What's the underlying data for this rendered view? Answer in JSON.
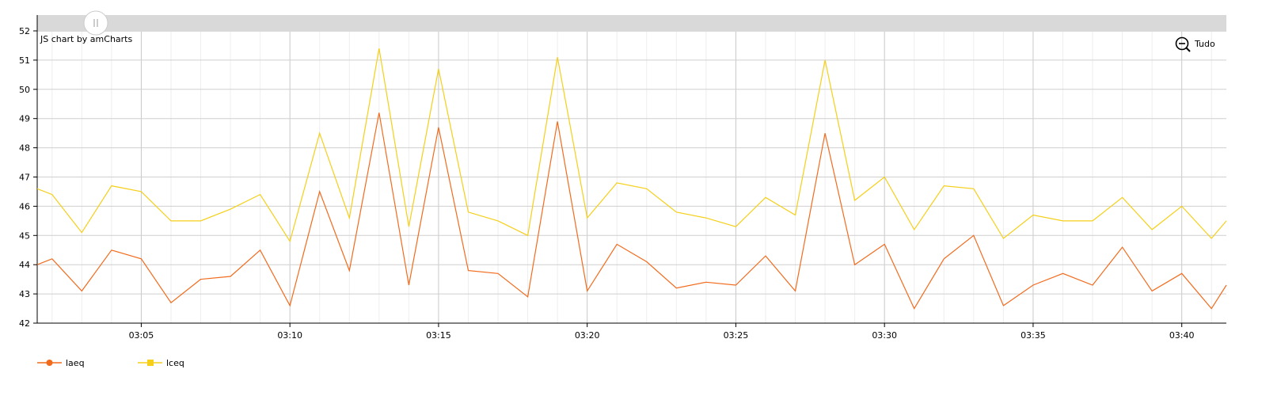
{
  "chart_data": {
    "type": "line",
    "credit": "JS chart by amCharts",
    "zoom_out_label": "Tudo",
    "y_ticks": [
      "42",
      "43",
      "44",
      "45",
      "46",
      "47",
      "48",
      "49",
      "50",
      "51",
      "52"
    ],
    "ylim": [
      42,
      52
    ],
    "x_tick_labels": [
      "03:05",
      "03:10",
      "03:15",
      "03:20",
      "03:25",
      "03:30",
      "03:35",
      "03:40"
    ],
    "x_tick_minutes": [
      185,
      190,
      195,
      200,
      205,
      210,
      215,
      220
    ],
    "xlim_minutes": [
      181.5,
      221.5
    ],
    "x_minutes": [
      181.5,
      182,
      183,
      184,
      185,
      186,
      187,
      188,
      189,
      190,
      191,
      192,
      193,
      194,
      195,
      196,
      197,
      198,
      199,
      200,
      201,
      202,
      203,
      204,
      205,
      206,
      207,
      208,
      209,
      210,
      211,
      212,
      213,
      214,
      215,
      216,
      217,
      218,
      219,
      220,
      221,
      221.5
    ],
    "grid": true,
    "legend_position": "bottom-left",
    "series": [
      {
        "name": "laeq",
        "color": "#f26b1d",
        "marker": "circle",
        "values": [
          44.0,
          44.2,
          43.1,
          44.5,
          44.2,
          42.7,
          43.5,
          43.6,
          44.5,
          42.6,
          46.5,
          43.8,
          49.2,
          43.3,
          48.7,
          43.8,
          43.7,
          42.9,
          48.9,
          43.1,
          44.7,
          44.1,
          43.2,
          43.4,
          43.3,
          44.3,
          43.1,
          48.5,
          44.0,
          44.7,
          42.5,
          44.2,
          45.0,
          42.6,
          43.3,
          43.7,
          43.3,
          44.6,
          43.1,
          43.7,
          42.5,
          43.3
        ]
      },
      {
        "name": "lceq",
        "color": "#f5cf19",
        "marker": "square",
        "values": [
          46.6,
          46.4,
          45.1,
          46.7,
          46.5,
          45.5,
          45.5,
          45.9,
          46.4,
          44.8,
          48.5,
          45.6,
          51.4,
          45.3,
          50.7,
          45.8,
          45.5,
          45.0,
          51.1,
          45.6,
          46.8,
          46.6,
          45.8,
          45.6,
          45.3,
          46.3,
          45.7,
          51.0,
          46.2,
          47.0,
          45.2,
          46.7,
          46.6,
          44.9,
          45.7,
          45.5,
          45.5,
          46.3,
          45.2,
          46.0,
          44.9,
          45.5
        ]
      }
    ]
  }
}
